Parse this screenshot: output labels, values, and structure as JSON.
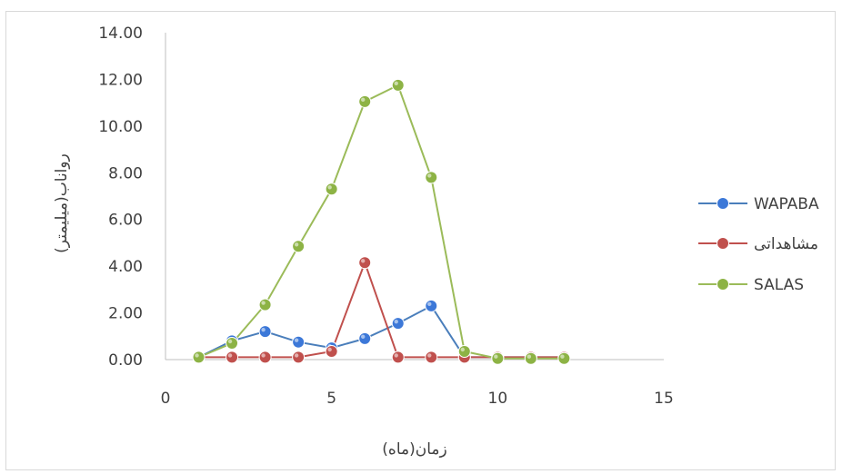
{
  "chart_data": {
    "type": "scatter",
    "mode": "lines+markers",
    "xlabel": "زمان(ماه)",
    "ylabel": "رواناب(میلیمتر)",
    "xlim": [
      0,
      15
    ],
    "ylim": [
      0,
      14
    ],
    "x_ticks": [
      "0",
      "5",
      "10",
      "15"
    ],
    "y_ticks": [
      "0.00",
      "2.00",
      "4.00",
      "6.00",
      "8.00",
      "10.00",
      "12.00",
      "14.00"
    ],
    "grid": false,
    "legend_position": "right",
    "series": [
      {
        "name": "WAPABA",
        "color": "#4a7ebb",
        "marker_color": "#3c78d8",
        "x": [
          1,
          2,
          3,
          4,
          5,
          6,
          7,
          8,
          9,
          10,
          11,
          12
        ],
        "y": [
          0.1,
          0.8,
          1.2,
          0.75,
          0.5,
          0.9,
          1.55,
          2.3,
          0.1,
          0.1,
          0.1,
          0.1
        ]
      },
      {
        "name": "مشاهداتی",
        "color": "#c0504d",
        "marker_color": "#c0504d",
        "x": [
          1,
          2,
          3,
          4,
          5,
          6,
          7,
          8,
          9,
          10,
          11,
          12
        ],
        "y": [
          0.1,
          0.1,
          0.1,
          0.1,
          0.35,
          4.15,
          0.1,
          0.1,
          0.1,
          0.1,
          0.1,
          0.1
        ]
      },
      {
        "name": "SALAS",
        "color": "#9bbb59",
        "marker_color": "#8db345",
        "x": [
          1,
          2,
          3,
          4,
          5,
          6,
          7,
          8,
          9,
          10,
          11,
          12
        ],
        "y": [
          0.1,
          0.7,
          2.35,
          4.85,
          7.3,
          11.05,
          11.75,
          7.8,
          0.35,
          0.05,
          0.05,
          0.05
        ]
      }
    ]
  }
}
